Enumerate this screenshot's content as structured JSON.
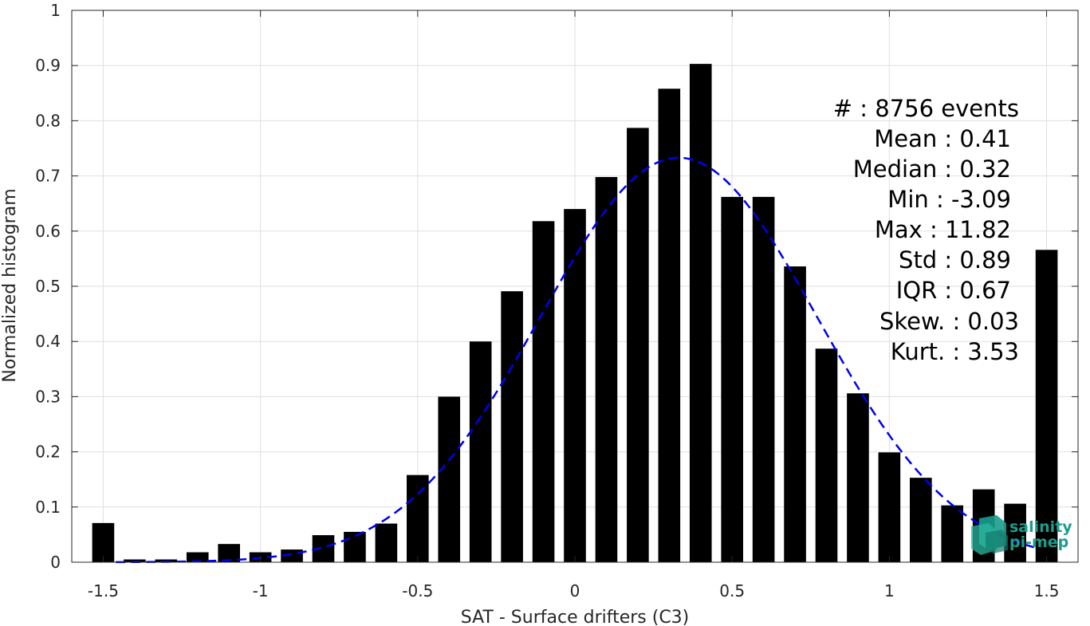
{
  "chart_data": {
    "type": "bar",
    "xlabel": "SAT - Surface drifters (C3)",
    "ylabel": "Normalized histogram",
    "xlim": [
      -1.6,
      1.6
    ],
    "ylim": [
      0,
      1
    ],
    "grid": true,
    "xticks": [
      -1.5,
      -1,
      -0.5,
      0,
      0.5,
      1,
      1.5
    ],
    "xtick_labels": [
      "-1.5",
      "-1",
      "-0.5",
      "0",
      "0.5",
      "1",
      "1.5"
    ],
    "yticks": [
      0,
      0.1,
      0.2,
      0.3,
      0.4,
      0.5,
      0.6,
      0.7,
      0.8,
      0.9,
      1
    ],
    "ytick_labels": [
      "0",
      "0.1",
      "0.2",
      "0.3",
      "0.4",
      "0.5",
      "0.6",
      "0.7",
      "0.8",
      "0.9",
      "1"
    ],
    "bar_width": 0.07,
    "bar_color": "#000000",
    "x": [
      -1.5,
      -1.4,
      -1.3,
      -1.2,
      -1.1,
      -1.0,
      -0.9,
      -0.8,
      -0.7,
      -0.6,
      -0.5,
      -0.4,
      -0.3,
      -0.2,
      -0.1,
      0.0,
      0.1,
      0.2,
      0.3,
      0.4,
      0.5,
      0.6,
      0.7,
      0.8,
      0.9,
      1.0,
      1.1,
      1.2,
      1.3,
      1.4,
      1.5
    ],
    "values": [
      0.071,
      0.005,
      0.005,
      0.018,
      0.033,
      0.018,
      0.023,
      0.049,
      0.055,
      0.07,
      0.158,
      0.3,
      0.4,
      0.491,
      0.618,
      0.64,
      0.698,
      0.787,
      0.858,
      0.903,
      0.662,
      0.662,
      0.536,
      0.387,
      0.306,
      0.199,
      0.153,
      0.103,
      0.132,
      0.106,
      0.566
    ],
    "fit_curve": {
      "style": "dashed",
      "color": "#0000ee",
      "mean": 0.33,
      "sigma": 0.44,
      "peak": 0.733,
      "x_range": [
        -1.46,
        1.46
      ]
    }
  },
  "stats": [
    {
      "label": "#  : 8756 events"
    },
    {
      "label": "Mean : 0.41"
    },
    {
      "label": "Median : 0.32"
    },
    {
      "label": "Min : -3.09"
    },
    {
      "label": "Max : 11.82"
    },
    {
      "label": "Std : 0.89"
    },
    {
      "label": "IQR : 0.67"
    },
    {
      "label": "Skew. : 0.03"
    },
    {
      "label": "Kurt. : 3.53"
    }
  ],
  "logo": {
    "line1": "salinity",
    "line2": "pi-mep",
    "color": "#1a9e8c"
  }
}
